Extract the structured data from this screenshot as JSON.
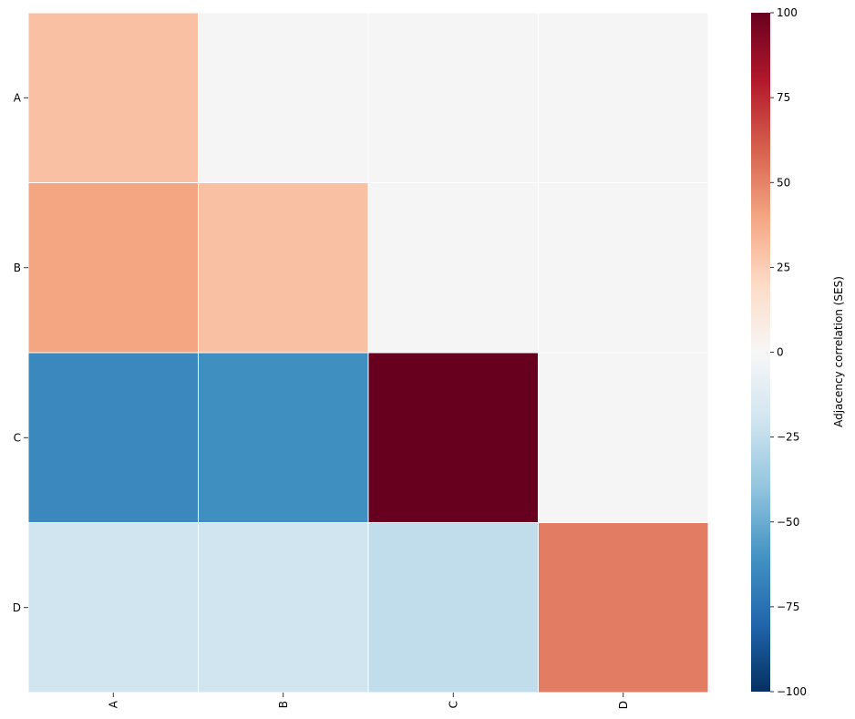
{
  "chart_data": {
    "type": "heatmap",
    "rows": [
      "A",
      "B",
      "C",
      "D"
    ],
    "columns": [
      "A",
      "B",
      "C",
      "D"
    ],
    "values": [
      [
        30,
        null,
        null,
        null
      ],
      [
        40,
        30,
        null,
        null
      ],
      [
        -65,
        -62,
        100,
        null
      ],
      [
        -20,
        -20,
        -25,
        52
      ]
    ],
    "masked_color": "#f5f5f5",
    "grid_line_color": "#ffffff",
    "colormap": "RdBu_r",
    "vmin": -100,
    "vmax": 100,
    "colorbar": {
      "label": "Adjacency correlation (SES)",
      "ticks": [
        -100,
        -75,
        -50,
        -25,
        0,
        25,
        50,
        75,
        100
      ],
      "tick_labels": [
        "−100",
        "−75",
        "−50",
        "−25",
        "0",
        "25",
        "50",
        "75",
        "100"
      ]
    }
  }
}
